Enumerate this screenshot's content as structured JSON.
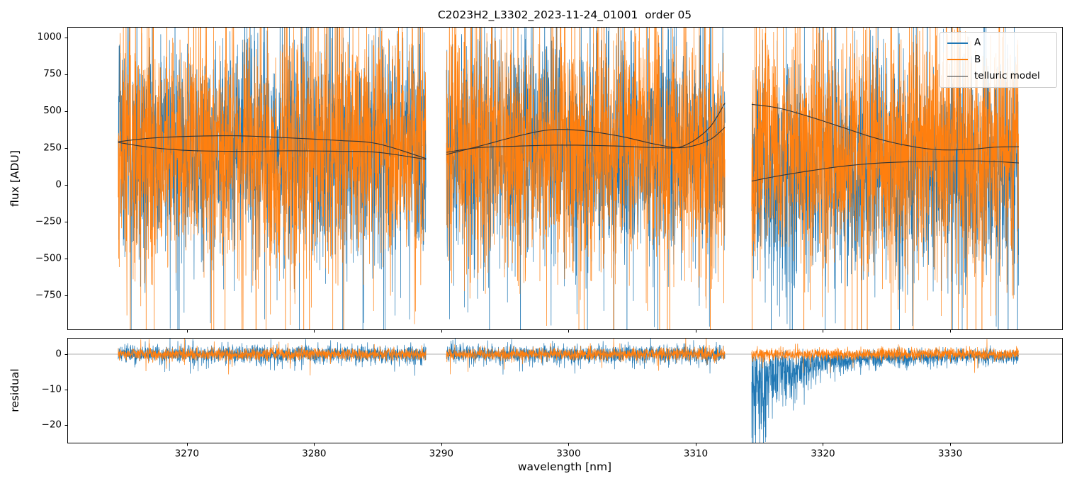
{
  "chart_data": {
    "type": "line",
    "title": "C2023H2_L3302_2023-11-24_01001  order 05",
    "xlabel": "wavelength [nm]",
    "background": "#ffffff",
    "x_range": [
      3260.6,
      3338.8
    ],
    "x_ticks": [
      3270,
      3280,
      3290,
      3300,
      3310,
      3320,
      3330
    ],
    "segments_nm": [
      [
        3264.6,
        3288.8
      ],
      [
        3290.4,
        3312.3
      ],
      [
        3314.4,
        3335.4
      ]
    ],
    "series": [
      {
        "name": "A",
        "color": "#1f77b4"
      },
      {
        "name": "B",
        "color": "#ff7f0e"
      }
    ],
    "legend": [
      {
        "label": "A",
        "color": "#1f77b4"
      },
      {
        "label": "B",
        "color": "#ff7f0e"
      },
      {
        "label": "telluric model",
        "color": "#333333"
      }
    ],
    "panels": {
      "flux": {
        "ylabel": "flux [ADU]",
        "ylim": [
          -980,
          1070
        ],
        "yticks": [
          1000,
          750,
          500,
          250,
          0,
          -250,
          -500,
          -750
        ],
        "noise": {
          "baseline": 240,
          "sigma": [
            360,
            390
          ],
          "spike_prob": 0.07,
          "spike_scale": 2.4,
          "seg3_bias_a": -150,
          "step": 0.014,
          "seeds": [
            101,
            102,
            103,
            104,
            105,
            106
          ]
        }
      },
      "residual": {
        "ylabel": "residual",
        "ylim": [
          -25,
          4.6
        ],
        "yticks": [
          0,
          -10,
          -20
        ],
        "zero_line": 0,
        "noise": {
          "sigma": [
            1.25,
            0.85
          ],
          "spike_prob": [
            0.02,
            0.01
          ],
          "seg3_a": {
            "amp": 26,
            "tau": 3.2,
            "coef": 0.5,
            "floor": 1.8
          },
          "step": 0.014,
          "seeds": [
            201,
            202,
            203,
            204,
            205,
            206
          ]
        }
      }
    },
    "telluric_model": {
      "color": "#333333",
      "segments": [
        [
          [
            [
              3264.6,
              287
            ],
            [
              3267,
              255
            ],
            [
              3270,
              233
            ],
            [
              3274,
              227
            ],
            [
              3278,
              230
            ],
            [
              3282,
              227
            ],
            [
              3285,
              220
            ],
            [
              3288.8,
              172
            ]
          ],
          [
            [
              3264.6,
              292
            ],
            [
              3267,
              315
            ],
            [
              3270,
              328
            ],
            [
              3274,
              332
            ],
            [
              3278,
              318
            ],
            [
              3282,
              300
            ],
            [
              3285,
              278
            ],
            [
              3288.8,
              178
            ]
          ]
        ],
        [
          [
            [
              3290.4,
              205
            ],
            [
              3293,
              262
            ],
            [
              3296,
              330
            ],
            [
              3298.5,
              372
            ],
            [
              3301,
              368
            ],
            [
              3304,
              330
            ],
            [
              3307,
              272
            ],
            [
              3309,
              252
            ],
            [
              3311,
              300
            ],
            [
              3312.3,
              390
            ]
          ],
          [
            [
              3290.4,
              220
            ],
            [
              3293,
              252
            ],
            [
              3296,
              262
            ],
            [
              3298.5,
              268
            ],
            [
              3301,
              268
            ],
            [
              3304,
              262
            ],
            [
              3307,
              252
            ],
            [
              3309,
              262
            ],
            [
              3311,
              380
            ],
            [
              3312.3,
              555
            ]
          ]
        ],
        [
          [
            [
              3314.4,
              545
            ],
            [
              3316.5,
              520
            ],
            [
              3319,
              460
            ],
            [
              3321.5,
              390
            ],
            [
              3324,
              320
            ],
            [
              3326.5,
              268
            ],
            [
              3329,
              238
            ],
            [
              3331.5,
              240
            ],
            [
              3333.5,
              255
            ],
            [
              3335.4,
              258
            ]
          ],
          [
            [
              3314.4,
              25
            ],
            [
              3316.5,
              60
            ],
            [
              3319,
              95
            ],
            [
              3321.5,
              125
            ],
            [
              3324,
              145
            ],
            [
              3326.5,
              155
            ],
            [
              3329,
              160
            ],
            [
              3331.5,
              162
            ],
            [
              3333.5,
              158
            ],
            [
              3335.4,
              148
            ]
          ]
        ]
      ]
    }
  }
}
